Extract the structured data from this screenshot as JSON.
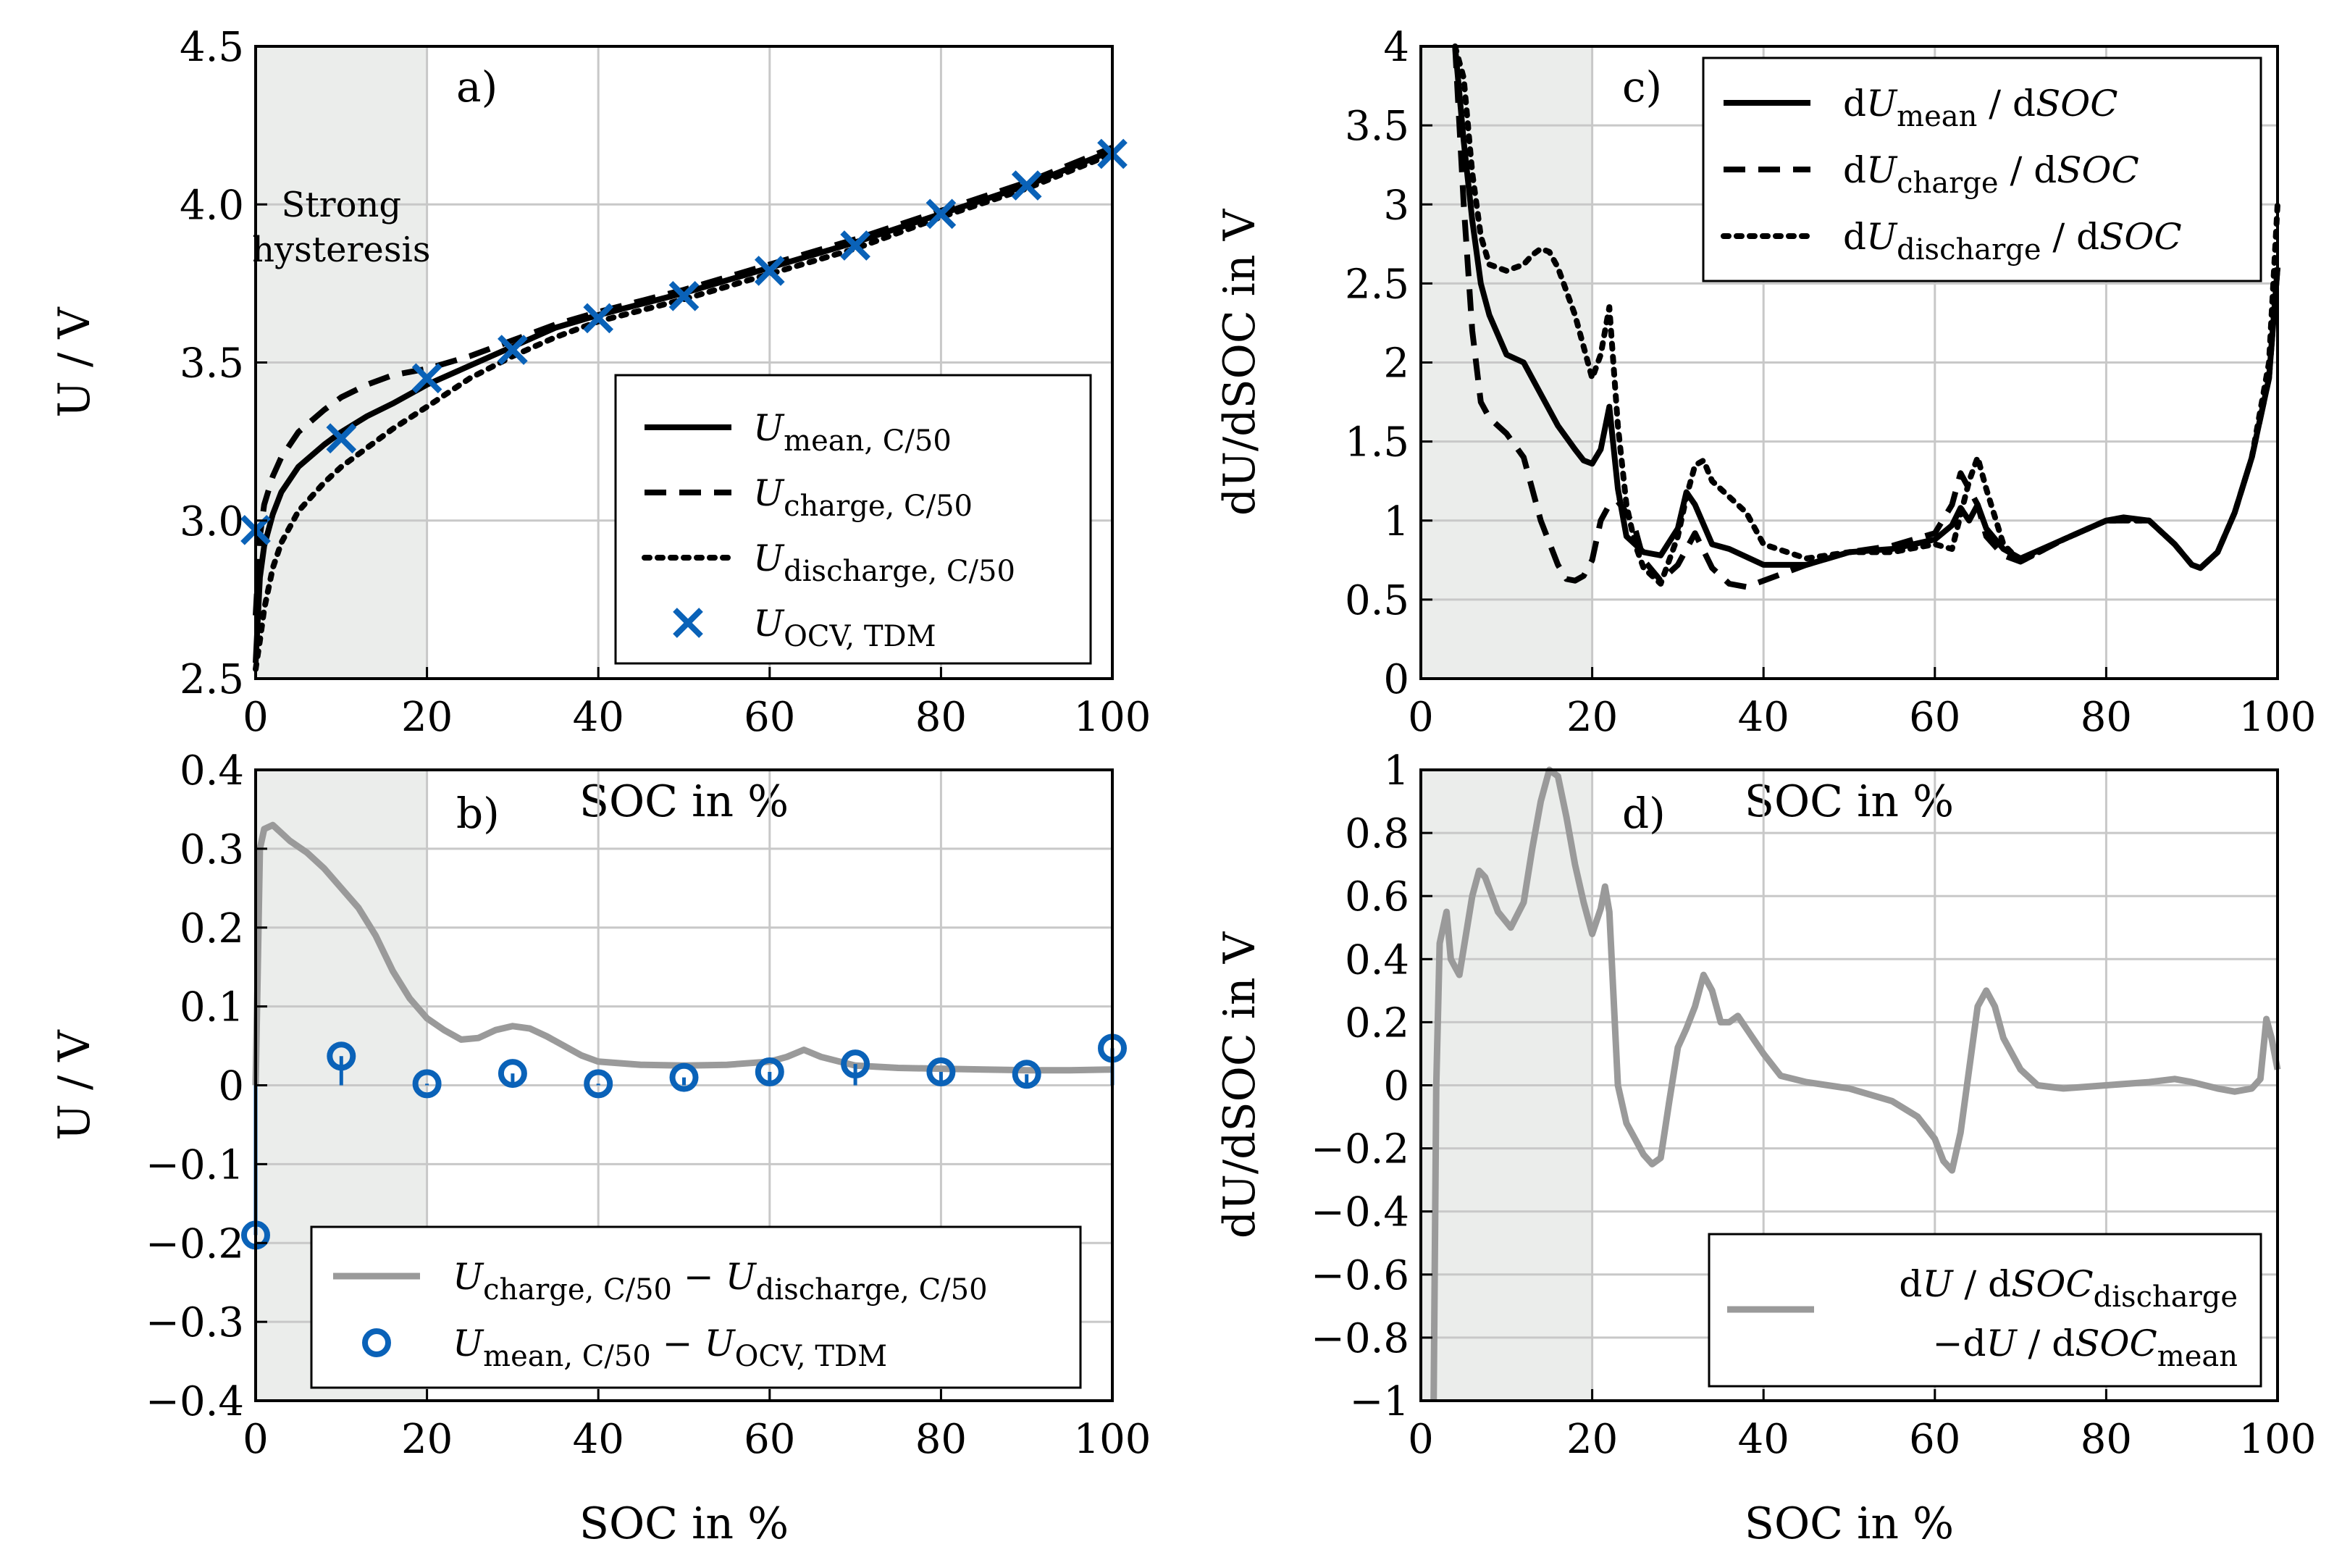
{
  "colors": {
    "black": "#000000",
    "gray": "#9a9a9a",
    "blue": "#0a62b8",
    "shade": "#ebedeb"
  },
  "chart_data": [
    {
      "id": "a",
      "type": "line",
      "panel_label": "a)",
      "annotation": [
        "Strong",
        "hysteresis"
      ],
      "xlabel": "SOC in %",
      "ylabel": "U / V",
      "xlim": [
        0,
        100
      ],
      "ylim": [
        2.5,
        4.5
      ],
      "xticks": [
        0,
        20,
        40,
        60,
        80,
        100
      ],
      "yticks": [
        2.5,
        3,
        3.5,
        4,
        4.5
      ],
      "grid": true,
      "shaded_region": [
        0,
        20
      ],
      "legend_position": "bottom-right",
      "legend": [
        {
          "base": "U",
          "sub": "mean, C/50",
          "style": "solid"
        },
        {
          "base": "U",
          "sub": "charge, C/50",
          "style": "dashed"
        },
        {
          "base": "U",
          "sub": "discharge, C/50",
          "style": "dotted"
        },
        {
          "base": "U",
          "sub": "OCV, TDM",
          "style": "x-marker"
        }
      ],
      "series": [
        {
          "style": "solid",
          "x": [
            0,
            0.5,
            1,
            2,
            3,
            5,
            8,
            10,
            13,
            16,
            20,
            25,
            30,
            35,
            40,
            50,
            60,
            70,
            80,
            90,
            100
          ],
          "y": [
            2.55,
            2.82,
            2.92,
            3.02,
            3.09,
            3.17,
            3.24,
            3.28,
            3.33,
            3.37,
            3.43,
            3.49,
            3.55,
            3.61,
            3.65,
            3.72,
            3.8,
            3.88,
            3.97,
            4.06,
            4.17
          ]
        },
        {
          "style": "dashed",
          "x": [
            0,
            0.5,
            1,
            2,
            3,
            5,
            8,
            10,
            13,
            16,
            20,
            25,
            30,
            35,
            40,
            50,
            60,
            70,
            80,
            90,
            100
          ],
          "y": [
            2.7,
            2.95,
            3.05,
            3.14,
            3.2,
            3.28,
            3.35,
            3.39,
            3.43,
            3.46,
            3.48,
            3.52,
            3.57,
            3.62,
            3.66,
            3.73,
            3.81,
            3.89,
            3.98,
            4.07,
            4.18
          ]
        },
        {
          "style": "dotted",
          "x": [
            0,
            0.5,
            1,
            2,
            3,
            5,
            8,
            10,
            13,
            16,
            20,
            25,
            30,
            35,
            40,
            50,
            60,
            70,
            80,
            90,
            100
          ],
          "y": [
            2.53,
            2.62,
            2.72,
            2.85,
            2.93,
            3.03,
            3.12,
            3.17,
            3.23,
            3.29,
            3.36,
            3.45,
            3.52,
            3.58,
            3.63,
            3.7,
            3.78,
            3.86,
            3.96,
            4.05,
            4.16
          ]
        },
        {
          "style": "x-marker",
          "x": [
            0,
            10,
            20,
            30,
            40,
            50,
            60,
            70,
            80,
            90,
            100
          ],
          "y": [
            2.97,
            3.26,
            3.45,
            3.54,
            3.64,
            3.71,
            3.79,
            3.87,
            3.97,
            4.06,
            4.16
          ]
        }
      ]
    },
    {
      "id": "b",
      "type": "line",
      "panel_label": "b)",
      "xlabel": "SOC in %",
      "ylabel": "U / V",
      "xlim": [
        0,
        100
      ],
      "ylim": [
        -0.4,
        0.4
      ],
      "xticks": [
        0,
        20,
        40,
        60,
        80,
        100
      ],
      "yticks": [
        -0.4,
        -0.3,
        -0.2,
        -0.1,
        0,
        0.1,
        0.2,
        0.3,
        0.4
      ],
      "ytick_labels": [
        "−0.4",
        "−0.3",
        "−0.2",
        "−0.1",
        "0",
        "0.1",
        "0.2",
        "0.3",
        "0.4"
      ],
      "grid": true,
      "shaded_region": [
        0,
        20
      ],
      "legend_position": "bottom-right",
      "legend": [
        {
          "terms": [
            {
              "base": "U",
              "sub": "charge, C/50"
            },
            {
              "op": " − "
            },
            {
              "base": "U",
              "sub": "discharge, C/50"
            }
          ],
          "style": "gray-line"
        },
        {
          "terms": [
            {
              "base": "U",
              "sub": "mean, C/50"
            },
            {
              "op": " − "
            },
            {
              "base": "U",
              "sub": "OCV, TDM"
            }
          ],
          "style": "o-marker"
        }
      ],
      "series": [
        {
          "style": "gray-line",
          "x": [
            0,
            0.5,
            1,
            2,
            4,
            6,
            8,
            10,
            12,
            14,
            16,
            18,
            20,
            22,
            24,
            26,
            28,
            30,
            32,
            34,
            36,
            38,
            40,
            45,
            50,
            55,
            60,
            62,
            64,
            66,
            70,
            75,
            80,
            85,
            90,
            95,
            100
          ],
          "y": [
            0.0,
            0.3,
            0.325,
            0.33,
            0.31,
            0.295,
            0.275,
            0.25,
            0.225,
            0.19,
            0.145,
            0.11,
            0.085,
            0.07,
            0.058,
            0.06,
            0.07,
            0.075,
            0.072,
            0.062,
            0.05,
            0.038,
            0.03,
            0.026,
            0.025,
            0.026,
            0.03,
            0.036,
            0.045,
            0.036,
            0.025,
            0.022,
            0.021,
            0.02,
            0.019,
            0.019,
            0.02
          ]
        },
        {
          "style": "o-marker",
          "x": [
            0,
            10,
            20,
            30,
            40,
            50,
            60,
            70,
            80,
            90,
            100
          ],
          "y": [
            -0.19,
            0.037,
            0.002,
            0.015,
            0.002,
            0.01,
            0.017,
            0.027,
            0.017,
            0.014,
            0.047
          ]
        }
      ]
    },
    {
      "id": "c",
      "type": "line",
      "panel_label": "c)",
      "xlabel": "SOC in %",
      "ylabel": "dU/dSOC in V",
      "xlim": [
        0,
        100
      ],
      "ylim": [
        0,
        4
      ],
      "xticks": [
        0,
        20,
        40,
        60,
        80,
        100
      ],
      "yticks": [
        0,
        0.5,
        1,
        1.5,
        2,
        2.5,
        3,
        3.5,
        4
      ],
      "grid": true,
      "shaded_region": [
        0,
        20
      ],
      "legend_position": "top-right",
      "legend": [
        {
          "pre": "d",
          "base": "U",
          "sub": "mean",
          "post": " / d",
          "tail": "SOC",
          "style": "solid"
        },
        {
          "pre": "d",
          "base": "U",
          "sub": "charge",
          "post": " / d",
          "tail": "SOC",
          "style": "dashed"
        },
        {
          "pre": "d",
          "base": "U",
          "sub": "discharge",
          "post": " / d",
          "tail": "SOC",
          "style": "dotted"
        }
      ],
      "series": [
        {
          "style": "solid",
          "x": [
            4,
            5,
            6,
            7,
            8,
            10,
            12,
            14,
            16,
            18,
            19,
            20,
            21,
            22,
            23,
            24,
            26,
            28,
            30,
            31,
            32,
            34,
            36,
            38,
            40,
            45,
            50,
            55,
            60,
            62,
            63,
            64,
            65,
            66,
            68,
            70,
            75,
            80,
            82,
            85,
            88,
            90,
            91,
            93,
            95,
            97,
            99,
            100
          ],
          "y": [
            4.0,
            3.4,
            2.9,
            2.5,
            2.3,
            2.05,
            2.0,
            1.8,
            1.6,
            1.45,
            1.38,
            1.36,
            1.45,
            1.72,
            1.2,
            0.9,
            0.8,
            0.78,
            0.95,
            1.18,
            1.1,
            0.85,
            0.82,
            0.77,
            0.72,
            0.72,
            0.8,
            0.82,
            0.88,
            0.97,
            1.08,
            1.0,
            1.1,
            0.95,
            0.82,
            0.76,
            0.88,
            1.0,
            1.02,
            1.0,
            0.85,
            0.72,
            0.7,
            0.8,
            1.05,
            1.4,
            1.9,
            2.6
          ]
        },
        {
          "style": "dashed",
          "x": [
            4,
            5,
            6,
            7,
            8,
            10,
            12,
            14,
            16,
            17,
            18,
            19,
            20,
            21,
            22,
            23,
            24,
            25,
            26,
            28,
            30,
            32,
            34,
            36,
            38,
            40,
            45,
            50,
            55,
            60,
            62,
            63,
            64,
            65,
            66,
            68,
            70,
            75,
            80,
            85,
            88,
            90,
            91,
            93,
            95,
            97,
            99,
            100
          ],
          "y": [
            4.0,
            3.0,
            2.2,
            1.75,
            1.65,
            1.55,
            1.4,
            1.0,
            0.72,
            0.63,
            0.62,
            0.65,
            0.75,
            1.0,
            1.1,
            1.12,
            1.05,
            0.95,
            0.75,
            0.62,
            0.72,
            0.92,
            0.7,
            0.6,
            0.58,
            0.62,
            0.72,
            0.8,
            0.84,
            0.92,
            1.1,
            1.3,
            1.2,
            1.1,
            0.9,
            0.78,
            0.74,
            0.88,
            1.0,
            1.0,
            0.85,
            0.72,
            0.7,
            0.8,
            1.05,
            1.4,
            1.9,
            2.6
          ]
        },
        {
          "style": "dotted",
          "x": [
            4,
            5,
            6,
            7,
            8,
            10,
            12,
            13,
            14,
            15,
            16,
            18,
            20,
            21,
            22,
            23,
            24,
            25,
            26,
            28,
            30,
            31,
            32,
            33,
            34,
            36,
            38,
            40,
            45,
            50,
            55,
            60,
            62,
            64,
            65,
            66,
            68,
            70,
            75,
            80,
            85,
            88,
            90,
            91,
            93,
            95,
            97,
            99,
            100
          ],
          "y": [
            4.0,
            3.8,
            3.2,
            2.8,
            2.62,
            2.58,
            2.62,
            2.68,
            2.72,
            2.7,
            2.6,
            2.3,
            1.9,
            2.05,
            2.35,
            1.6,
            1.1,
            0.85,
            0.7,
            0.6,
            0.9,
            1.15,
            1.35,
            1.38,
            1.25,
            1.15,
            1.05,
            0.85,
            0.76,
            0.8,
            0.8,
            0.85,
            0.82,
            1.25,
            1.4,
            1.2,
            0.85,
            0.74,
            0.88,
            1.0,
            1.0,
            0.85,
            0.72,
            0.7,
            0.8,
            1.05,
            1.4,
            2.0,
            3.0
          ]
        }
      ]
    },
    {
      "id": "d",
      "type": "line",
      "panel_label": "d)",
      "xlabel": "SOC in %",
      "ylabel": "dU/dSOC in V",
      "xlim": [
        0,
        100
      ],
      "ylim": [
        -1,
        1
      ],
      "xticks": [
        0,
        20,
        40,
        60,
        80,
        100
      ],
      "yticks": [
        -1,
        -0.8,
        -0.6,
        -0.4,
        -0.2,
        0,
        0.2,
        0.4,
        0.6,
        0.8,
        1
      ],
      "ytick_labels": [
        "−1",
        "−0.8",
        "−0.6",
        "−0.4",
        "−0.2",
        "0",
        "0.2",
        "0.4",
        "0.6",
        "0.8",
        "1"
      ],
      "grid": true,
      "shaded_region": [
        0,
        20
      ],
      "legend_position": "bottom-right",
      "legend": [
        {
          "lines": [
            [
              {
                "t": "d"
              },
              {
                "t": "U",
                "i": true
              },
              {
                "t": " / d"
              },
              {
                "t": "SOC",
                "i": true
              },
              {
                "t": "discharge",
                "sub": true
              }
            ],
            [
              {
                "t": "−d"
              },
              {
                "t": "U",
                "i": true
              },
              {
                "t": " / d"
              },
              {
                "t": "SOC",
                "i": true
              },
              {
                "t": "mean",
                "sub": true
              }
            ]
          ],
          "style": "gray-line"
        }
      ],
      "series": [
        {
          "style": "gray-line",
          "x": [
            1.5,
            1.8,
            2.2,
            3,
            3.5,
            4.5,
            6,
            6.8,
            7.5,
            9,
            10.5,
            12,
            13,
            14,
            15,
            16,
            17,
            18,
            19,
            20,
            21,
            21.5,
            22,
            23,
            24,
            25,
            26,
            27,
            28,
            29,
            30,
            31,
            32,
            33,
            34,
            35,
            36,
            37,
            38,
            40,
            42,
            45,
            50,
            55,
            58,
            60,
            61,
            62,
            63,
            64,
            65,
            66,
            67,
            68,
            70,
            72,
            75,
            80,
            85,
            88,
            90,
            93,
            95,
            97,
            98,
            98.7,
            99.3,
            100
          ],
          "y": [
            -1.0,
            0.0,
            0.45,
            0.55,
            0.4,
            0.35,
            0.6,
            0.68,
            0.66,
            0.55,
            0.5,
            0.58,
            0.75,
            0.9,
            1.0,
            0.98,
            0.85,
            0.7,
            0.58,
            0.48,
            0.56,
            0.63,
            0.55,
            0.0,
            -0.12,
            -0.17,
            -0.22,
            -0.25,
            -0.23,
            -0.05,
            0.12,
            0.18,
            0.25,
            0.35,
            0.3,
            0.2,
            0.2,
            0.22,
            0.18,
            0.1,
            0.03,
            0.01,
            -0.01,
            -0.05,
            -0.1,
            -0.17,
            -0.24,
            -0.27,
            -0.15,
            0.05,
            0.25,
            0.3,
            0.25,
            0.15,
            0.05,
            0.0,
            -0.01,
            0.0,
            0.01,
            0.02,
            0.01,
            -0.01,
            -0.02,
            -0.01,
            0.02,
            0.21,
            0.15,
            0.05
          ]
        }
      ]
    }
  ]
}
